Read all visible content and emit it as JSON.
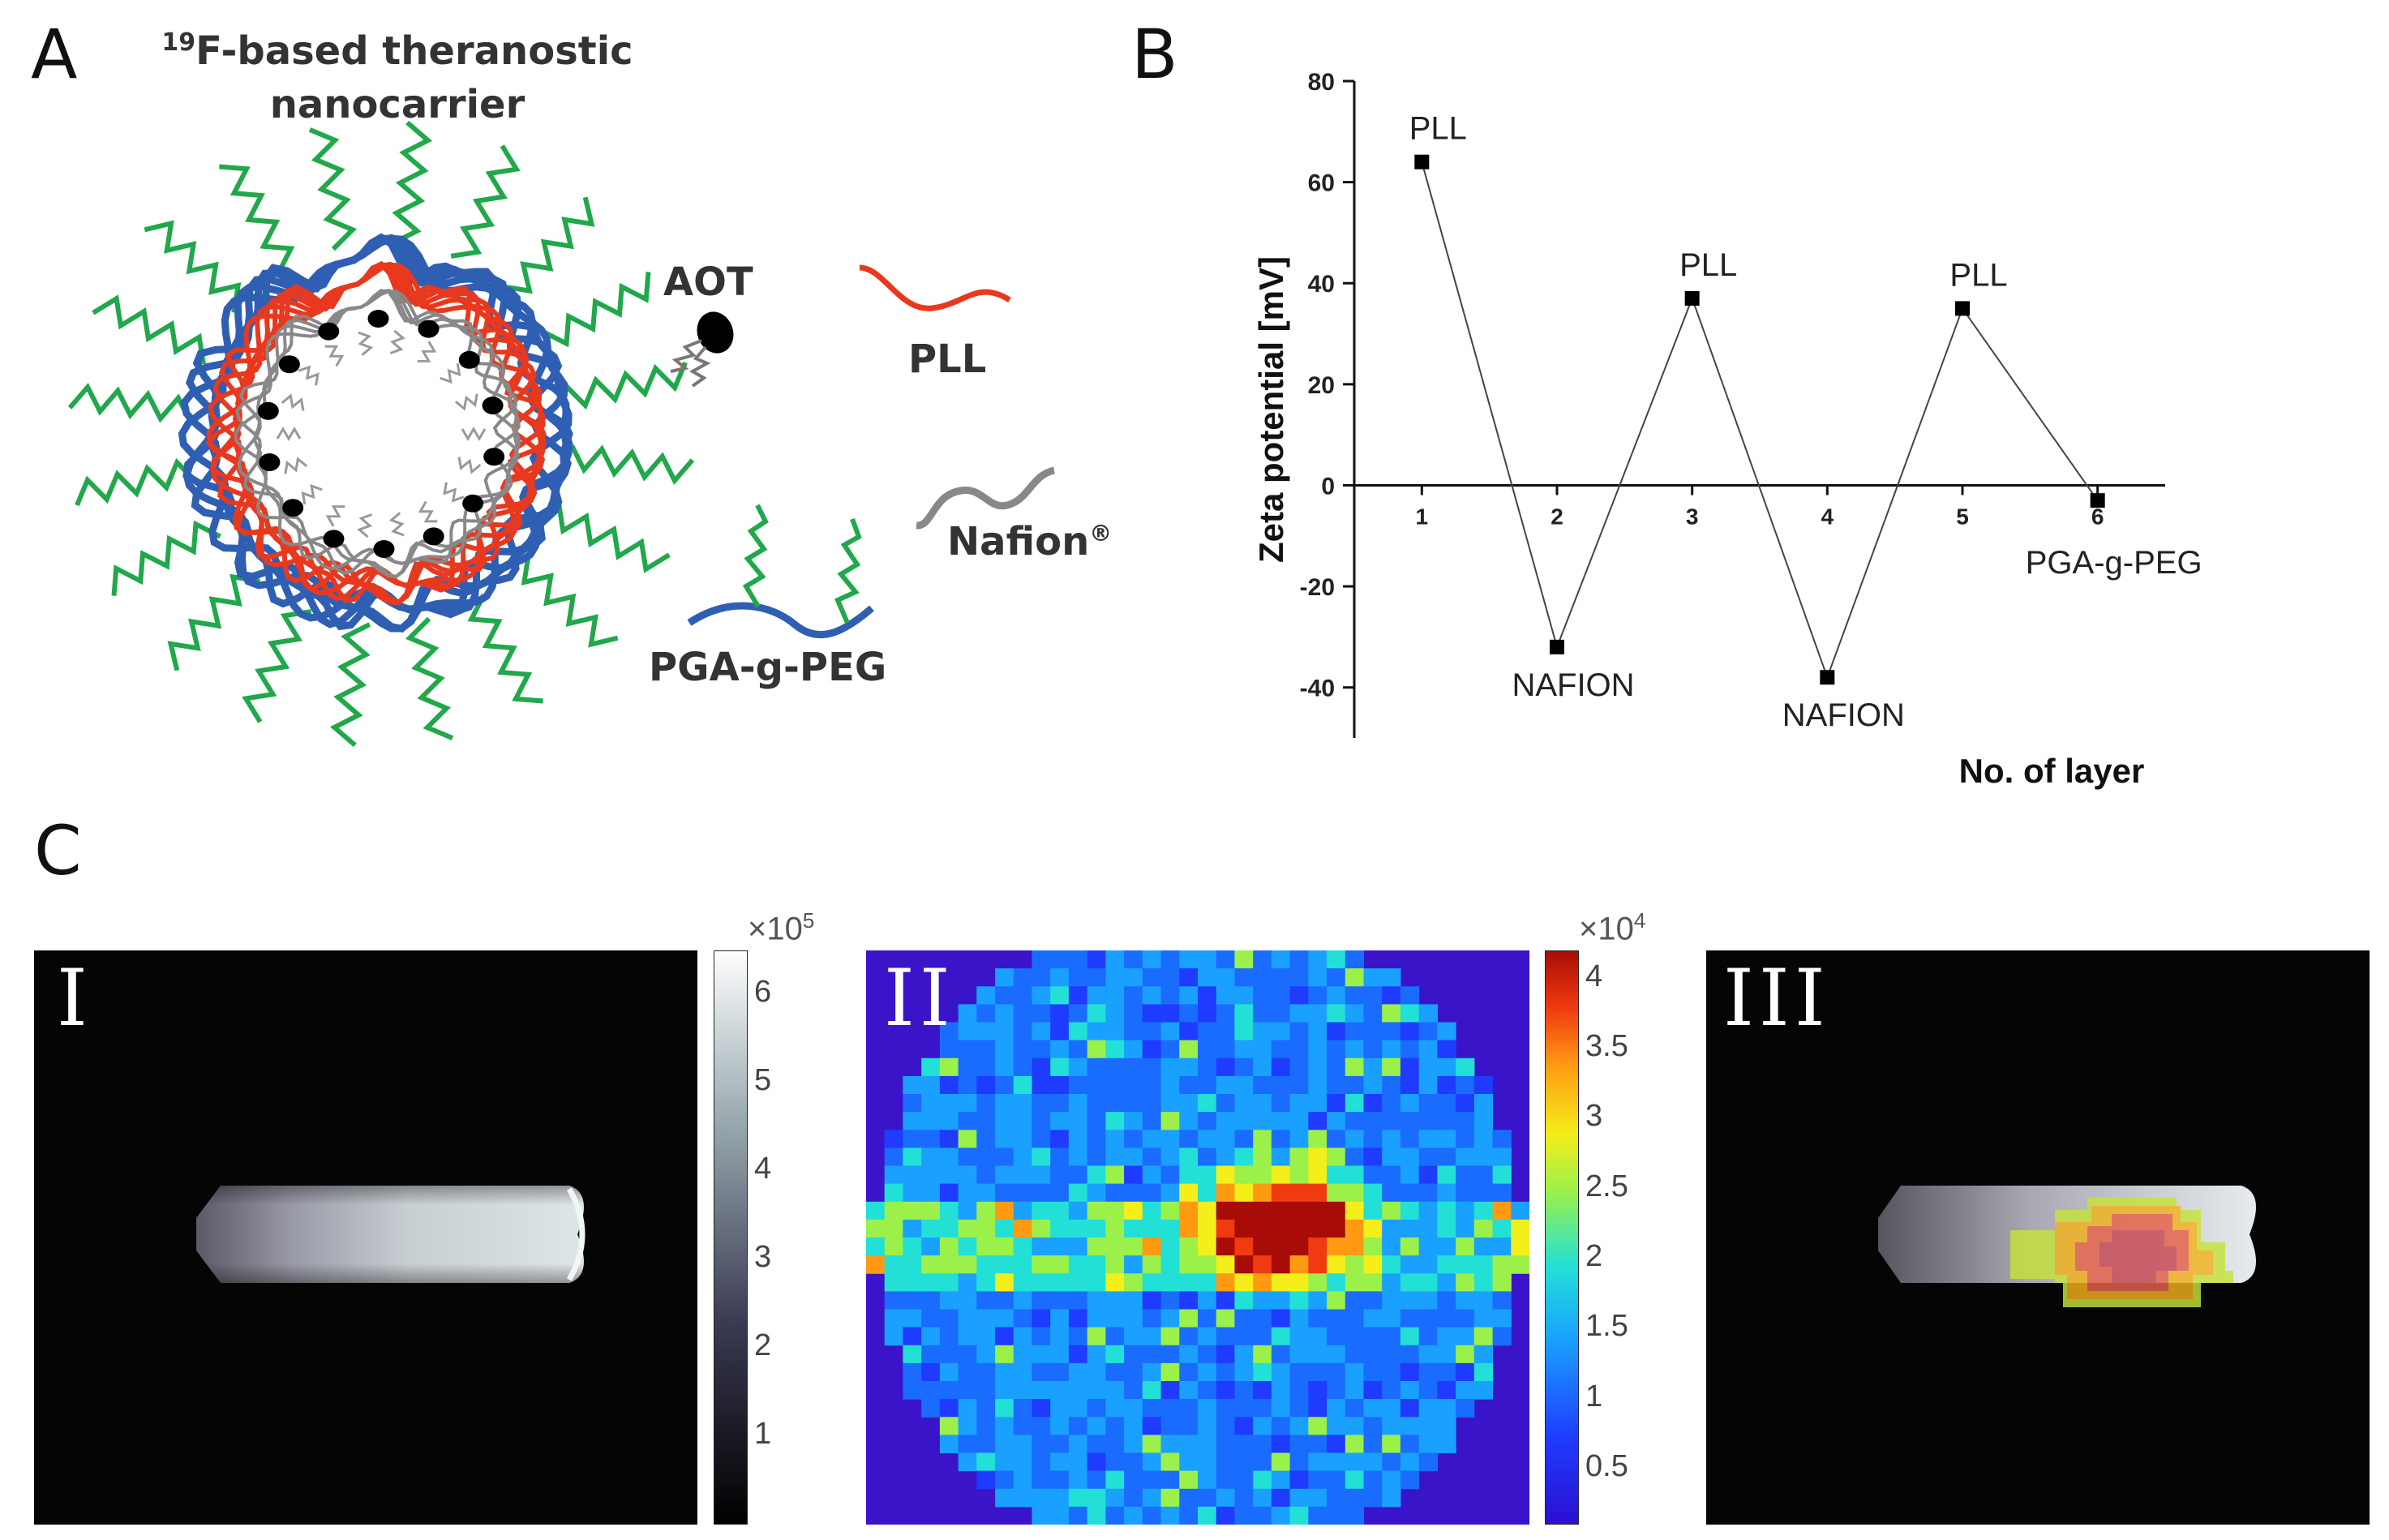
{
  "panel_a": {
    "label": "A",
    "title_sup": "19",
    "title_line1": "F-based theranostic",
    "title_line2": "nanocarrier",
    "legend": {
      "aot": "AOT",
      "pll": "PLL",
      "nafion": "Nafion",
      "nafion_mark": "®",
      "pga": "PGA-g-PEG"
    },
    "colors": {
      "pga_blue": "#2f5fb3",
      "pll_red": "#e8391f",
      "peg_green": "#20a84a",
      "nafion_gray": "#808080"
    }
  },
  "panel_b": {
    "label": "B",
    "chart_data": {
      "type": "line",
      "xlabel": "No. of layer",
      "ylabel": "Zeta potential [mV]",
      "x": [
        1,
        2,
        3,
        4,
        5,
        6
      ],
      "y": [
        64,
        -32,
        37,
        -38,
        35,
        -3
      ],
      "point_labels": [
        "PLL",
        "NAFION",
        "PLL",
        "NAFION",
        "PLL",
        "PGA-g-PEG"
      ],
      "xticks": [
        "1",
        "2",
        "3",
        "4",
        "5",
        "6"
      ],
      "yticks": [
        "80",
        "60",
        "40",
        "20",
        "0",
        "-20",
        "-40"
      ],
      "ylim": [
        -50,
        80
      ],
      "xlim": [
        0.5,
        6.5
      ],
      "grid": false
    }
  },
  "panel_c": {
    "label": "C",
    "images": [
      {
        "label": "I",
        "colorbar": {
          "exponent_base": "×10",
          "exponent": "5",
          "ticks": [
            "6",
            "5",
            "4",
            "3",
            "2",
            "1"
          ],
          "max": 6.5,
          "min": 0
        }
      },
      {
        "label": "II",
        "colorbar": {
          "exponent_base": "×10",
          "exponent": "4",
          "ticks": [
            "4",
            "3.5",
            "3",
            "2.5",
            "2",
            "1.5",
            "1",
            "0.5"
          ],
          "max": 4.2,
          "min": 0.1
        }
      },
      {
        "label": "III"
      }
    ]
  }
}
